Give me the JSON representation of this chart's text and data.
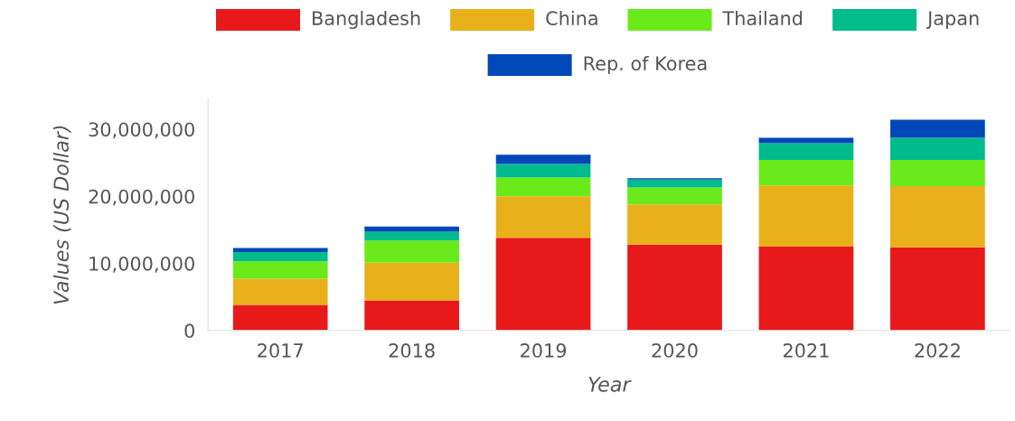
{
  "chart_data": {
    "type": "bar",
    "stacked": true,
    "xlabel": "Year",
    "ylabel": "Values (US Dollar)",
    "categories": [
      "2017",
      "2018",
      "2019",
      "2020",
      "2021",
      "2022"
    ],
    "series": [
      {
        "name": "Bangladesh",
        "color": "#e8191a",
        "values": [
          3800000,
          4500000,
          13800000,
          12800000,
          12500000,
          12400000
        ]
      },
      {
        "name": "China",
        "color": "#e8b01a",
        "values": [
          3900000,
          5600000,
          6200000,
          6000000,
          9100000,
          9100000
        ]
      },
      {
        "name": "Thailand",
        "color": "#6aea1a",
        "values": [
          2600000,
          3300000,
          2800000,
          2500000,
          3800000,
          3900000
        ]
      },
      {
        "name": "Japan",
        "color": "#00bc8c",
        "values": [
          1400000,
          1300000,
          2000000,
          1200000,
          2500000,
          3300000
        ]
      },
      {
        "name": "Rep. of Korea",
        "color": "#0048b8",
        "values": [
          600000,
          800000,
          1400000,
          200000,
          800000,
          2700000
        ]
      }
    ],
    "ylim": [
      0,
      34500000
    ],
    "yticks": [
      {
        "value": 0,
        "label": "0"
      },
      {
        "value": 10000000,
        "label": "10,000,000"
      },
      {
        "value": 20000000,
        "label": "20,000,000"
      },
      {
        "value": 30000000,
        "label": "30,000,000"
      }
    ],
    "grid": false,
    "legend": "top"
  }
}
